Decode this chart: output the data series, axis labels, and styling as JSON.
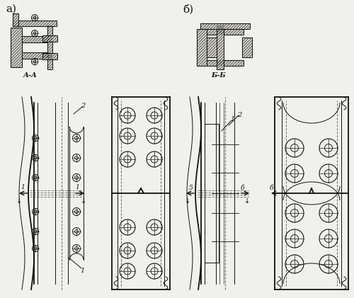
{
  "bg_color": "#f0f0ec",
  "line_color": "#111111",
  "figsize": [
    5.0,
    4.21
  ],
  "dpi": 100,
  "label_a": "а)",
  "label_b": "б)",
  "section_aa": "А-А",
  "section_bb": "Б-Б"
}
